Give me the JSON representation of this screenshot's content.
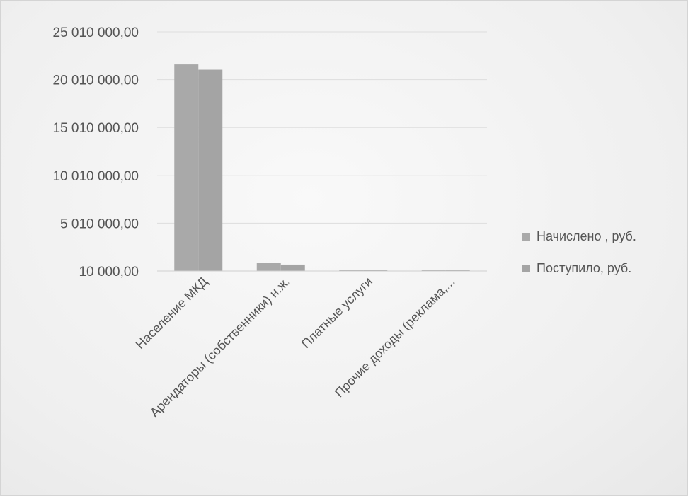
{
  "chart_data": {
    "type": "bar",
    "categories": [
      "Население МКД",
      "Арендаторы (собственники) н.ж.",
      "Платные услуги",
      "Прочие доходы (реклама,..."
    ],
    "series": [
      {
        "name": "Начислено , руб.",
        "values": [
          21600000,
          830000,
          60000,
          120000
        ]
      },
      {
        "name": "Поступило, руб.",
        "values": [
          21050000,
          680000,
          50000,
          90000
        ]
      }
    ],
    "y_ticks": [
      10000,
      5010000,
      10010000,
      15010000,
      20010000,
      25010000
    ],
    "y_tick_labels": [
      "10 000,00",
      "5 010 000,00",
      "10 010 000,00",
      "15 010 000,00",
      "20 010 000,00",
      "25 010 000,00"
    ],
    "ylim": [
      10000,
      25010000
    ],
    "grid": true,
    "legend_position": "right",
    "colors": {
      "series_1": "#a9a9a9",
      "series_2": "#a4a4a4",
      "grid": "#dddddd",
      "axis": "#cfcfcf"
    }
  }
}
